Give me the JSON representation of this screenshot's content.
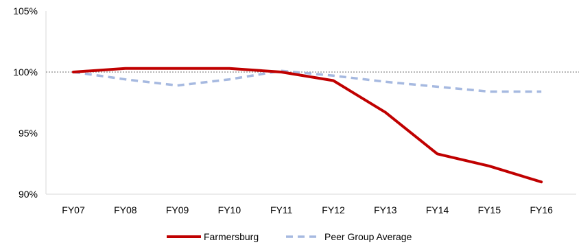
{
  "chart_data": {
    "type": "line",
    "title": "",
    "xlabel": "",
    "ylabel": "",
    "categories": [
      "FY07",
      "FY08",
      "FY09",
      "FY10",
      "FY11",
      "FY12",
      "FY13",
      "FY14",
      "FY15",
      "FY16"
    ],
    "ylim": [
      90,
      105
    ],
    "yticks": [
      90,
      95,
      100,
      105
    ],
    "ytick_labels": [
      "90%",
      "95%",
      "100%",
      "105%"
    ],
    "reference_line": 100,
    "grid": false,
    "legend_position": "bottom",
    "series": [
      {
        "name": "Farmersburg",
        "values": [
          100.0,
          100.3,
          100.3,
          100.3,
          100.0,
          99.3,
          96.7,
          93.3,
          92.3,
          91.0
        ],
        "color": "#c00000",
        "style": "solid"
      },
      {
        "name": "Peer Group Average",
        "values": [
          100.0,
          99.4,
          98.9,
          99.4,
          100.1,
          99.7,
          99.2,
          98.8,
          98.4,
          98.4
        ],
        "color": "#a6b9e0",
        "style": "dashed"
      }
    ]
  }
}
